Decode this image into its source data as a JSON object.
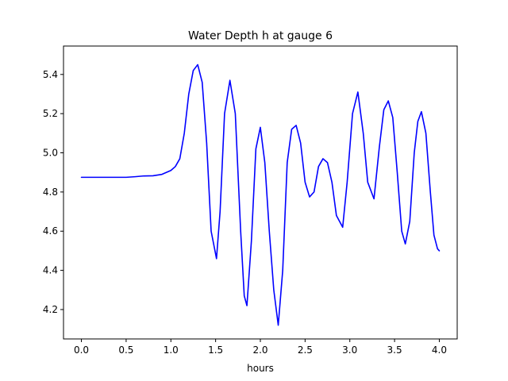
{
  "chart_data": {
    "type": "line",
    "title": "Water Depth h at gauge 6",
    "xlabel": "hours",
    "ylabel": "",
    "xlim": [
      -0.2,
      4.2
    ],
    "ylim": [
      4.05,
      5.545
    ],
    "xticks": [
      0.0,
      0.5,
      1.0,
      1.5,
      2.0,
      2.5,
      3.0,
      3.5,
      4.0
    ],
    "xtick_labels": [
      "0.0",
      "0.5",
      "1.0",
      "1.5",
      "2.0",
      "2.5",
      "3.0",
      "3.5",
      "4.0"
    ],
    "yticks": [
      4.2,
      4.4,
      4.6,
      4.8,
      5.0,
      5.2,
      5.4
    ],
    "ytick_labels": [
      "4.2",
      "4.4",
      "4.6",
      "4.8",
      "5.0",
      "5.2",
      "5.4"
    ],
    "grid": false,
    "series": [
      {
        "color": "#0000ff",
        "x": [
          0.0,
          0.25,
          0.5,
          0.6,
          0.7,
          0.8,
          0.9,
          1.0,
          1.05,
          1.1,
          1.15,
          1.2,
          1.25,
          1.3,
          1.35,
          1.4,
          1.45,
          1.51,
          1.55,
          1.6,
          1.66,
          1.72,
          1.78,
          1.82,
          1.85,
          1.9,
          1.95,
          2.0,
          2.05,
          2.1,
          2.15,
          2.2,
          2.25,
          2.3,
          2.35,
          2.4,
          2.45,
          2.5,
          2.55,
          2.6,
          2.65,
          2.7,
          2.75,
          2.8,
          2.85,
          2.92,
          2.97,
          3.03,
          3.09,
          3.15,
          3.2,
          3.27,
          3.33,
          3.38,
          3.43,
          3.48,
          3.53,
          3.58,
          3.62,
          3.67,
          3.72,
          3.76,
          3.8,
          3.85,
          3.9,
          3.94,
          3.98,
          4.0
        ],
        "y": [
          4.875,
          4.875,
          4.875,
          4.878,
          4.882,
          4.883,
          4.89,
          4.91,
          4.93,
          4.97,
          5.1,
          5.3,
          5.42,
          5.45,
          5.36,
          5.05,
          4.6,
          4.46,
          4.7,
          5.2,
          5.37,
          5.2,
          4.6,
          4.27,
          4.22,
          4.55,
          5.02,
          5.13,
          4.95,
          4.6,
          4.3,
          4.12,
          4.4,
          4.95,
          5.12,
          5.14,
          5.05,
          4.85,
          4.775,
          4.8,
          4.93,
          4.97,
          4.95,
          4.85,
          4.68,
          4.62,
          4.85,
          5.2,
          5.31,
          5.1,
          4.85,
          4.765,
          5.03,
          5.22,
          5.265,
          5.18,
          4.9,
          4.6,
          4.535,
          4.65,
          5.0,
          5.16,
          5.21,
          5.1,
          4.8,
          4.58,
          4.51,
          4.5
        ]
      }
    ]
  }
}
